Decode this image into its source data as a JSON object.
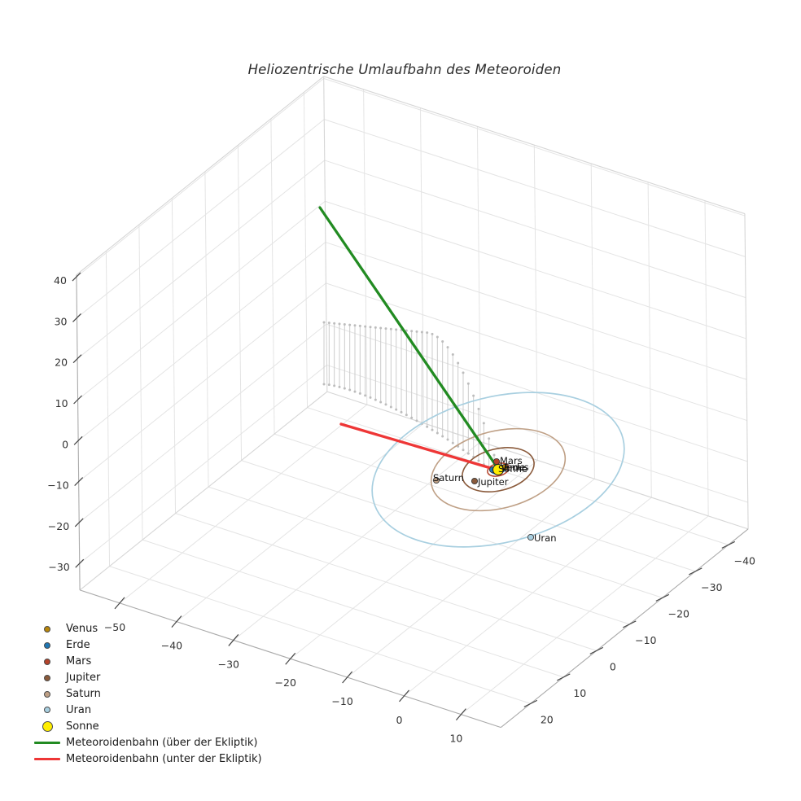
{
  "figure": {
    "title": "Heliozentrische Umlaufbahn des Meteoroiden"
  },
  "chart_data": {
    "type": "line",
    "projection": "3d",
    "title": "Heliozentrische Umlaufbahn des Meteoroiden",
    "grid": true,
    "axes": {
      "x": {
        "range": [
          -57,
          17
        ],
        "ticks": [
          -50,
          -40,
          -30,
          -20,
          -10,
          0,
          10
        ],
        "tick_labels": [
          "−50",
          "−40",
          "−30",
          "−20",
          "−10",
          "0",
          "10"
        ]
      },
      "y": {
        "range": [
          -46,
          29
        ],
        "ticks": [
          20,
          10,
          0,
          -10,
          -20,
          -30,
          -40
        ],
        "tick_labels": [
          "20",
          "10",
          "0",
          "−10",
          "−20",
          "−30",
          "−40"
        ]
      },
      "z": {
        "range": [
          -36.5,
          40.5
        ],
        "ticks": [
          40,
          30,
          20,
          10,
          0,
          -10,
          -20,
          -30
        ],
        "tick_labels": [
          "40",
          "30",
          "20",
          "10",
          "0",
          "−10",
          "−20",
          "−30"
        ]
      }
    },
    "sun": {
      "label": "Sonne",
      "color": "#ffee00",
      "position_au": [
        0,
        0,
        0
      ]
    },
    "planets": [
      {
        "name": "Venus",
        "orbit_radius_au": 0.72,
        "color": "#b8860b"
      },
      {
        "name": "Erde",
        "orbit_radius_au": 1.0,
        "color": "#1f77b4"
      },
      {
        "name": "Mars",
        "orbit_radius_au": 1.52,
        "color": "#b5432a"
      },
      {
        "name": "Jupiter",
        "orbit_radius_au": 5.2,
        "color": "#8a5a3b"
      },
      {
        "name": "Saturn",
        "orbit_radius_au": 9.5,
        "color": "#bfa086"
      },
      {
        "name": "Uran",
        "orbit_radius_au": 19.2,
        "color": "#a8cfe0"
      }
    ],
    "trajectory_above": {
      "label": "Meteoroidenbahn (über der Ekliptik)",
      "color": "#228b22",
      "start_au": [
        -37,
        -11,
        40
      ],
      "end_au": [
        0,
        0,
        0
      ]
    },
    "trajectory_below": {
      "label": "Meteoroidenbahn (unter der Ekliptik)",
      "color": "#ee3636",
      "start_au": [
        0,
        0,
        0
      ],
      "end_au": [
        -32,
        -7,
        -8
      ]
    },
    "legend": {
      "entries": [
        {
          "label": "Venus",
          "marker": "dot",
          "color": "#b8860b",
          "size": 8
        },
        {
          "label": "Erde",
          "marker": "dot",
          "color": "#1f77b4",
          "size": 8
        },
        {
          "label": "Mars",
          "marker": "dot",
          "color": "#b5432a",
          "size": 8
        },
        {
          "label": "Jupiter",
          "marker": "dot",
          "color": "#8a5a3b",
          "size": 8
        },
        {
          "label": "Saturn",
          "marker": "dot",
          "color": "#bfa086",
          "size": 8
        },
        {
          "label": "Uran",
          "marker": "dot",
          "color": "#a8cfe0",
          "size": 8
        },
        {
          "label": "Sonne",
          "marker": "dot",
          "color": "#ffee00",
          "size": 13
        },
        {
          "label": "Meteoroidenbahn (über der Ekliptik)",
          "marker": "line",
          "color": "#228b22"
        },
        {
          "label": "Meteoroidenbahn (unter der Ekliptik)",
          "marker": "line",
          "color": "#ee3636"
        }
      ]
    }
  }
}
